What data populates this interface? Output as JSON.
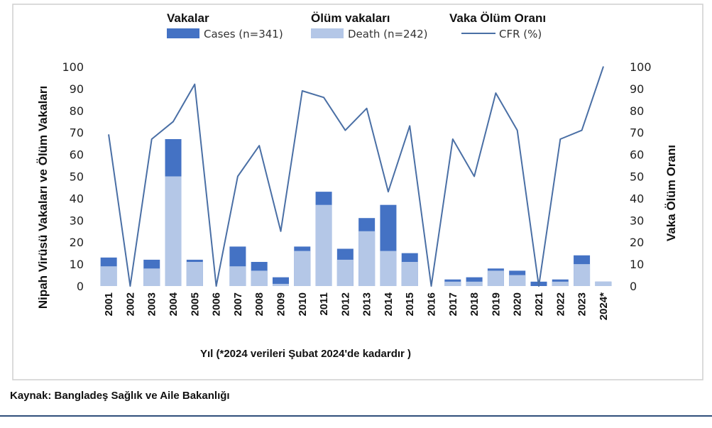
{
  "source": "Kaynak: Bangladeş Sağlık ve Aile Bakanlığı",
  "colors": {
    "cases": "#4472c4",
    "death": "#b4c7e7",
    "cfr": "#4a6fa5",
    "frame": "#cfcfcf",
    "rule": "#2f4e7a"
  },
  "chart_data": {
    "type": "bar",
    "stacked": true,
    "legend": [
      {
        "title": "Vakalar",
        "label": "Cases (n=341)",
        "kind": "bar",
        "color": "#4472c4"
      },
      {
        "title": "Ölüm vakaları",
        "label": "Death (n=242)",
        "kind": "bar",
        "color": "#b4c7e7"
      },
      {
        "title": "Vaka Ölüm Oranı",
        "label": "CFR (%)",
        "kind": "line",
        "color": "#4a6fa5"
      }
    ],
    "legend_placement": "top",
    "categories": [
      "2001",
      "2002",
      "2003",
      "2004",
      "2005",
      "2006",
      "2007",
      "2008",
      "2009",
      "2010",
      "2011",
      "2012",
      "2013",
      "2014",
      "2015",
      "2016",
      "2017",
      "2018",
      "2019",
      "2020",
      "2021",
      "2022",
      "2023",
      "2024*"
    ],
    "series": [
      {
        "name": "Cases (n=341)",
        "values": [
          13,
          0,
          12,
          67,
          12,
          0,
          18,
          11,
          4,
          18,
          43,
          17,
          31,
          37,
          15,
          0,
          3,
          4,
          8,
          7,
          2,
          3,
          14,
          2
        ]
      },
      {
        "name": "Death (n=242)",
        "values": [
          9,
          0,
          8,
          50,
          11,
          0,
          9,
          7,
          1,
          16,
          37,
          12,
          25,
          16,
          11,
          0,
          2,
          2,
          7,
          5,
          0,
          2,
          10,
          2
        ]
      },
      {
        "name": "CFR (%)",
        "axis": "right",
        "values": [
          69,
          0,
          67,
          75,
          92,
          0,
          50,
          64,
          25,
          89,
          86,
          71,
          81,
          43,
          73,
          0,
          67,
          50,
          88,
          71,
          0,
          67,
          71,
          100
        ]
      }
    ],
    "xlabel": "Yıl  (*2024 verileri Şubat 2024'de kadardır )",
    "ylabel": "Nipah Virüsü Vakaları ve Ölüm Vakaları",
    "ylabel_right": "Vaka Ölüm Oranı",
    "ylim": [
      0,
      100
    ],
    "ylim_right": [
      0,
      100
    ],
    "yticks": [
      0,
      10,
      20,
      30,
      40,
      50,
      60,
      70,
      80,
      90,
      100
    ],
    "grid": false
  }
}
